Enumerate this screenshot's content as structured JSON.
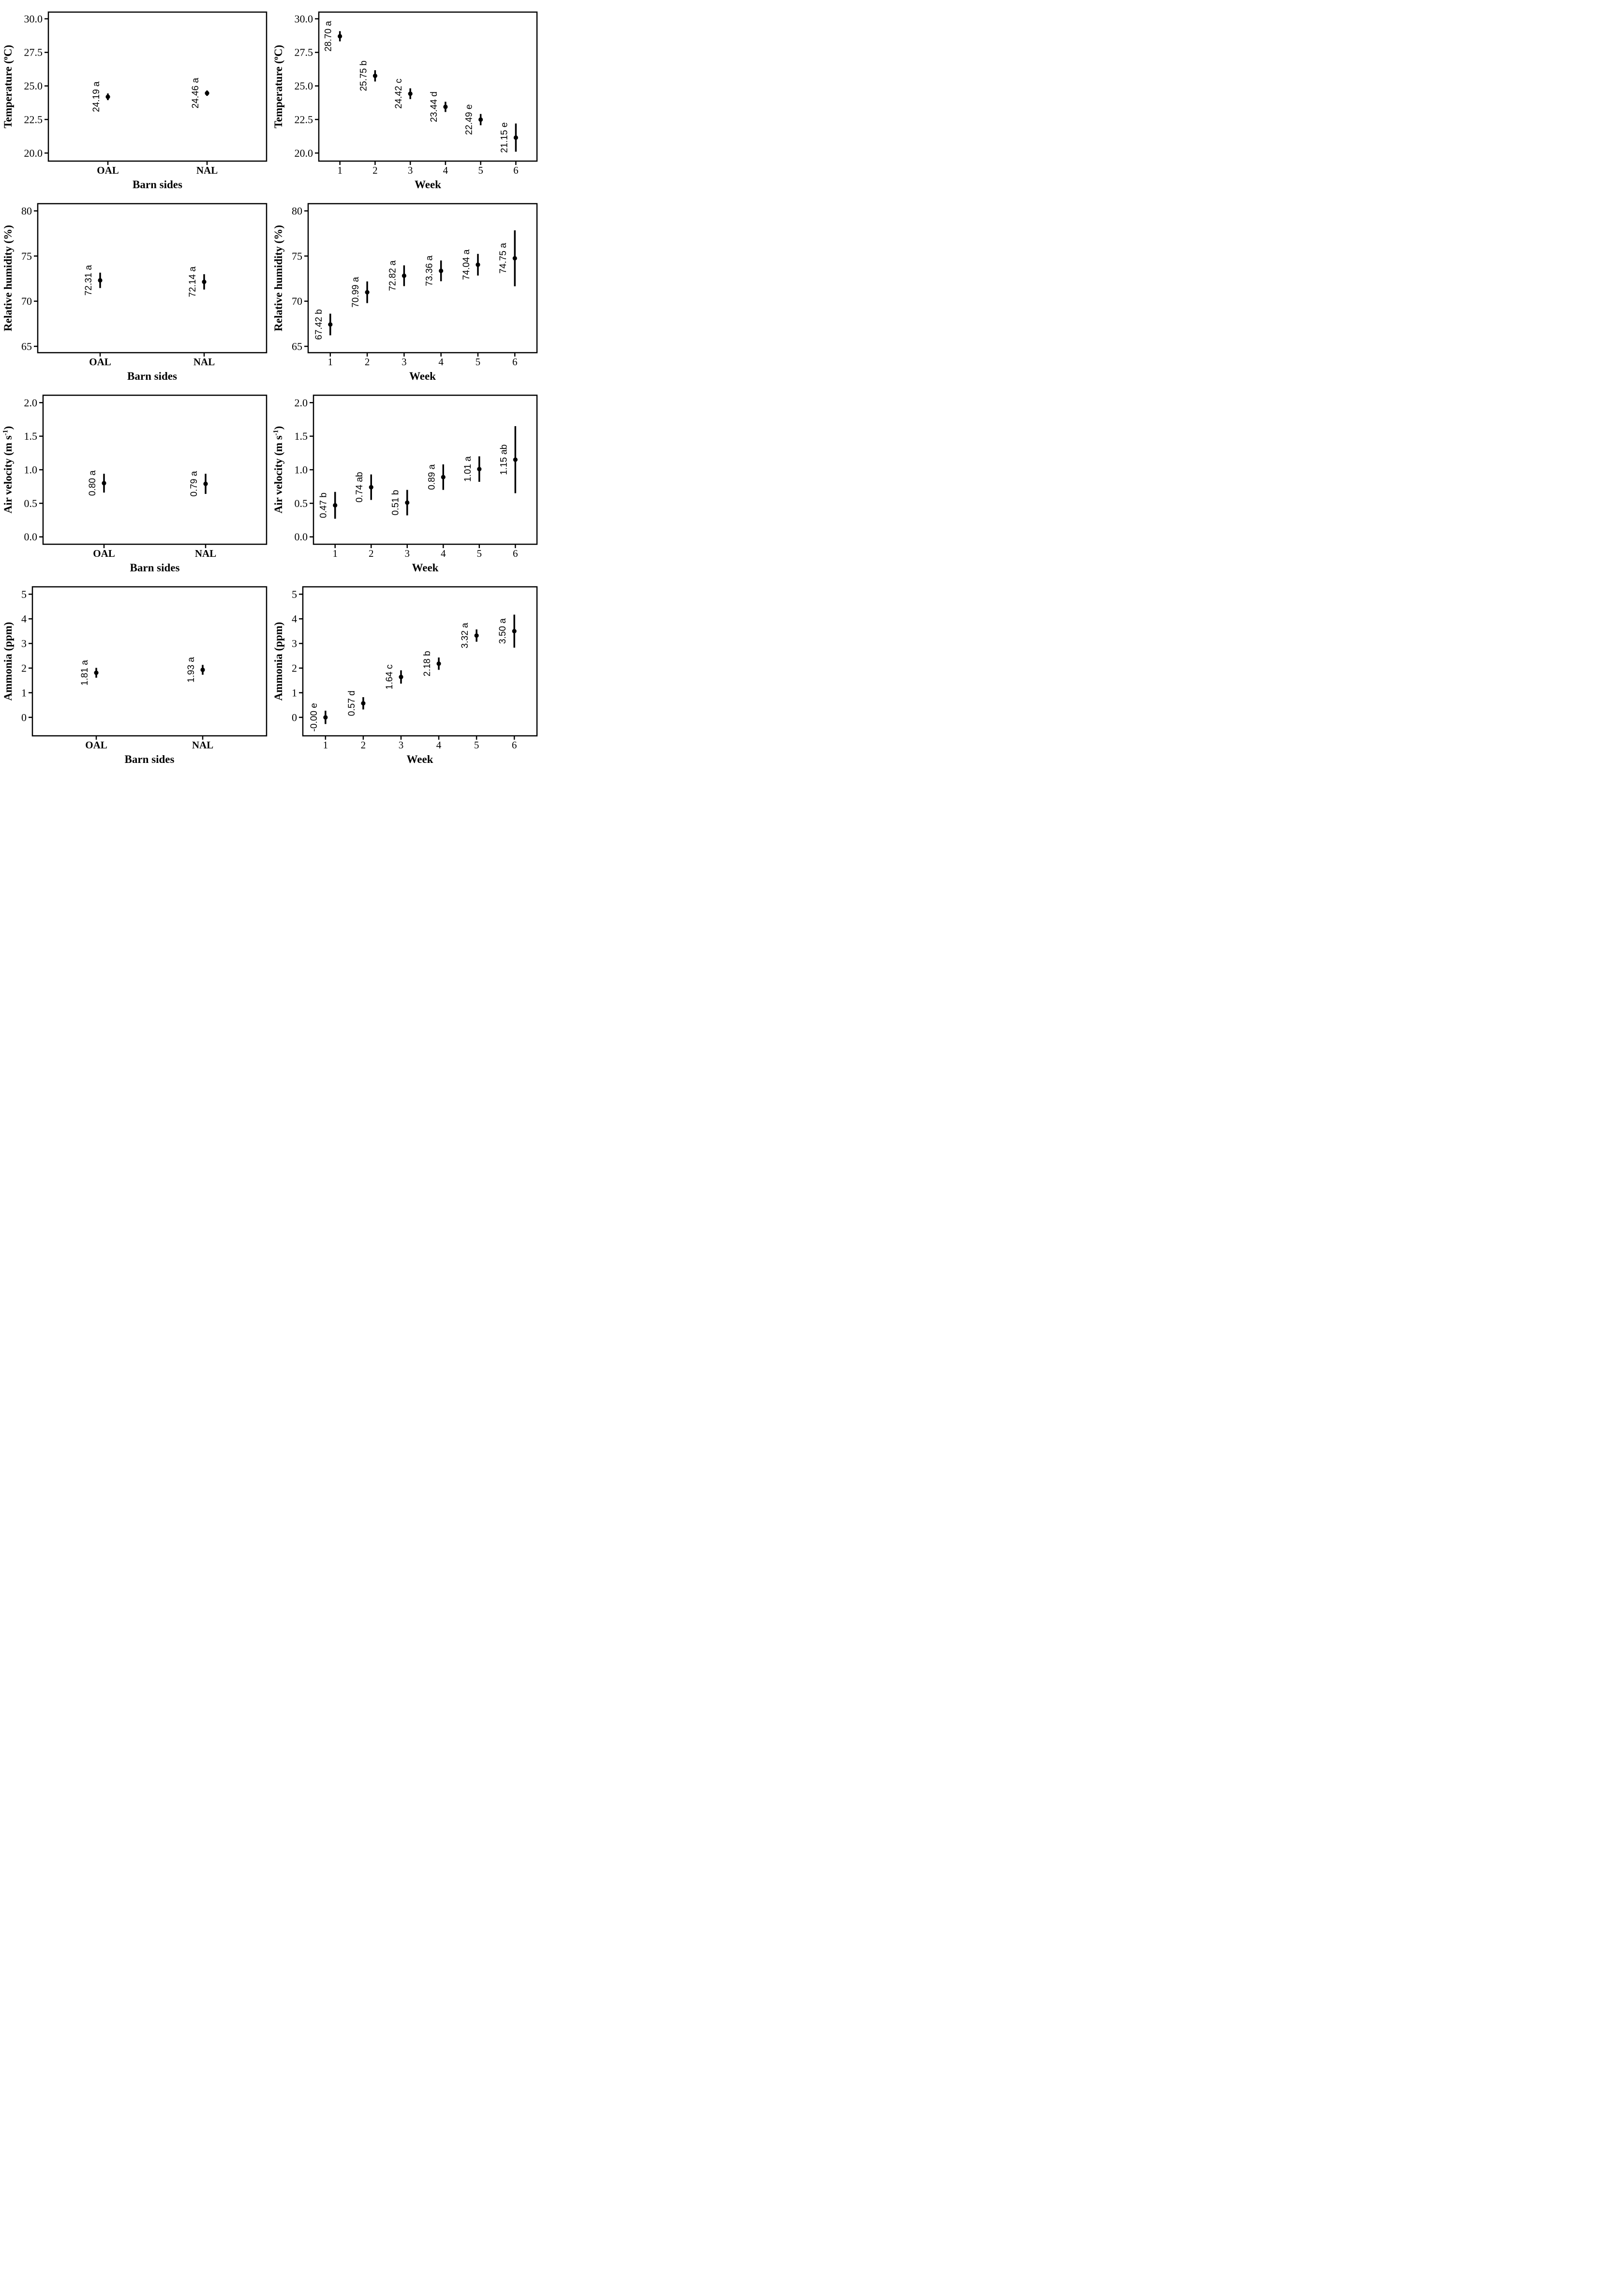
{
  "figure": {
    "background": "#ffffff",
    "ink_color": "#000000",
    "description": "Grid of eight mean-and-error-bar plots of barn environmental variables by barn side and by week"
  },
  "chart_data": [
    {
      "id": "temperature-barn",
      "type": "scatter",
      "title": "",
      "xlabel": "Barn sides",
      "ylabel": "Temperature (^o^C)",
      "grid": false,
      "legend": false,
      "x_tick_style": "bold",
      "xlim": [
        0.4,
        2.6
      ],
      "ylim": [
        19.4,
        30.5
      ],
      "x_ticks": [
        {
          "pos": 1,
          "label": "OAL"
        },
        {
          "pos": 2,
          "label": "NAL"
        }
      ],
      "y_ticks": [
        {
          "pos": 20.0,
          "label": "20.0"
        },
        {
          "pos": 22.5,
          "label": "22.5"
        },
        {
          "pos": 25.0,
          "label": "25.0"
        },
        {
          "pos": 27.5,
          "label": "27.5"
        },
        {
          "pos": 30.0,
          "label": "30.0"
        }
      ],
      "points": [
        {
          "x": 1,
          "y": 24.19,
          "err": 0.25,
          "label": "24.19 a"
        },
        {
          "x": 2,
          "y": 24.46,
          "err": 0.2,
          "label": "24.46 a"
        }
      ]
    },
    {
      "id": "temperature-week",
      "type": "scatter",
      "title": "",
      "xlabel": "Week",
      "ylabel": "Temperature (^o^C)",
      "grid": false,
      "legend": false,
      "x_tick_style": "regular",
      "xlim": [
        0.4,
        6.6
      ],
      "ylim": [
        19.4,
        30.5
      ],
      "x_ticks": [
        {
          "pos": 1,
          "label": "1"
        },
        {
          "pos": 2,
          "label": "2"
        },
        {
          "pos": 3,
          "label": "3"
        },
        {
          "pos": 4,
          "label": "4"
        },
        {
          "pos": 5,
          "label": "5"
        },
        {
          "pos": 6,
          "label": "6"
        }
      ],
      "y_ticks": [
        {
          "pos": 20.0,
          "label": "20.0"
        },
        {
          "pos": 22.5,
          "label": "22.5"
        },
        {
          "pos": 25.0,
          "label": "25.0"
        },
        {
          "pos": 27.5,
          "label": "27.5"
        },
        {
          "pos": 30.0,
          "label": "30.0"
        }
      ],
      "points": [
        {
          "x": 1,
          "y": 28.7,
          "err": 0.38,
          "label": "28.70 a"
        },
        {
          "x": 2,
          "y": 25.75,
          "err": 0.42,
          "label": "25.75 b"
        },
        {
          "x": 3,
          "y": 24.42,
          "err": 0.4,
          "label": "24.42 c"
        },
        {
          "x": 4,
          "y": 23.44,
          "err": 0.38,
          "label": "23.44 d"
        },
        {
          "x": 5,
          "y": 22.49,
          "err": 0.42,
          "label": "22.49 e"
        },
        {
          "x": 6,
          "y": 21.15,
          "err": 1.05,
          "label": "21.15 e"
        }
      ]
    },
    {
      "id": "humidity-barn",
      "type": "scatter",
      "title": "",
      "xlabel": "Barn sides",
      "ylabel": "Relative humidity (%)",
      "grid": false,
      "legend": false,
      "x_tick_style": "bold",
      "xlim": [
        0.4,
        2.6
      ],
      "ylim": [
        64.3,
        80.8
      ],
      "x_ticks": [
        {
          "pos": 1,
          "label": "OAL"
        },
        {
          "pos": 2,
          "label": "NAL"
        }
      ],
      "y_ticks": [
        {
          "pos": 65,
          "label": "65"
        },
        {
          "pos": 70,
          "label": "70"
        },
        {
          "pos": 75,
          "label": "75"
        },
        {
          "pos": 80,
          "label": "80"
        }
      ],
      "points": [
        {
          "x": 1,
          "y": 72.31,
          "err": 0.85,
          "label": "72.31 a"
        },
        {
          "x": 2,
          "y": 72.14,
          "err": 0.85,
          "label": "72.14 a"
        }
      ]
    },
    {
      "id": "humidity-week",
      "type": "scatter",
      "title": "",
      "xlabel": "Week",
      "ylabel": "Relative humidity (%)",
      "grid": false,
      "legend": false,
      "x_tick_style": "regular",
      "xlim": [
        0.4,
        6.6
      ],
      "ylim": [
        64.3,
        80.8
      ],
      "x_ticks": [
        {
          "pos": 1,
          "label": "1"
        },
        {
          "pos": 2,
          "label": "2"
        },
        {
          "pos": 3,
          "label": "3"
        },
        {
          "pos": 4,
          "label": "4"
        },
        {
          "pos": 5,
          "label": "5"
        },
        {
          "pos": 6,
          "label": "6"
        }
      ],
      "y_ticks": [
        {
          "pos": 65,
          "label": "65"
        },
        {
          "pos": 70,
          "label": "70"
        },
        {
          "pos": 75,
          "label": "75"
        },
        {
          "pos": 80,
          "label": "80"
        }
      ],
      "points": [
        {
          "x": 1,
          "y": 67.42,
          "err": 1.2,
          "label": "67.42 b"
        },
        {
          "x": 2,
          "y": 70.99,
          "err": 1.2,
          "label": "70.99 a"
        },
        {
          "x": 3,
          "y": 72.82,
          "err": 1.15,
          "label": "72.82 a"
        },
        {
          "x": 4,
          "y": 73.36,
          "err": 1.15,
          "label": "73.36 a"
        },
        {
          "x": 5,
          "y": 74.04,
          "err": 1.2,
          "label": "74.04 a"
        },
        {
          "x": 6,
          "y": 74.75,
          "err": 3.1,
          "label": "74.75 a"
        }
      ]
    },
    {
      "id": "airvelocity-barn",
      "type": "scatter",
      "title": "",
      "xlabel": "Barn sides",
      "ylabel": "Air velocity (m s^-1^)",
      "grid": false,
      "legend": false,
      "x_tick_style": "bold",
      "xlim": [
        0.4,
        2.6
      ],
      "ylim": [
        -0.11,
        2.11
      ],
      "x_ticks": [
        {
          "pos": 1,
          "label": "OAL"
        },
        {
          "pos": 2,
          "label": "NAL"
        }
      ],
      "y_ticks": [
        {
          "pos": 0.0,
          "label": "0.0"
        },
        {
          "pos": 0.5,
          "label": "0.5"
        },
        {
          "pos": 1.0,
          "label": "1.0"
        },
        {
          "pos": 1.5,
          "label": "1.5"
        },
        {
          "pos": 2.0,
          "label": "2.0"
        }
      ],
      "points": [
        {
          "x": 1,
          "y": 0.8,
          "err": 0.14,
          "label": "0.80 a"
        },
        {
          "x": 2,
          "y": 0.79,
          "err": 0.15,
          "label": "0.79 a"
        }
      ]
    },
    {
      "id": "airvelocity-week",
      "type": "scatter",
      "title": "",
      "xlabel": "Week",
      "ylabel": "Air velocity (m s^-1^)",
      "grid": false,
      "legend": false,
      "x_tick_style": "regular",
      "xlim": [
        0.4,
        6.6
      ],
      "ylim": [
        -0.11,
        2.11
      ],
      "x_ticks": [
        {
          "pos": 1,
          "label": "1"
        },
        {
          "pos": 2,
          "label": "2"
        },
        {
          "pos": 3,
          "label": "3"
        },
        {
          "pos": 4,
          "label": "4"
        },
        {
          "pos": 5,
          "label": "5"
        },
        {
          "pos": 6,
          "label": "6"
        }
      ],
      "y_ticks": [
        {
          "pos": 0.0,
          "label": "0.0"
        },
        {
          "pos": 0.5,
          "label": "0.5"
        },
        {
          "pos": 1.0,
          "label": "1.0"
        },
        {
          "pos": 1.5,
          "label": "1.5"
        },
        {
          "pos": 2.0,
          "label": "2.0"
        }
      ],
      "points": [
        {
          "x": 1,
          "y": 0.47,
          "err": 0.2,
          "label": "0.47 b"
        },
        {
          "x": 2,
          "y": 0.74,
          "err": 0.19,
          "label": "0.74 ab"
        },
        {
          "x": 3,
          "y": 0.51,
          "err": 0.19,
          "label": "0.51 b"
        },
        {
          "x": 4,
          "y": 0.89,
          "err": 0.19,
          "label": "0.89 a"
        },
        {
          "x": 5,
          "y": 1.01,
          "err": 0.19,
          "label": "1.01 a"
        },
        {
          "x": 6,
          "y": 1.15,
          "err": 0.5,
          "label": "1.15 ab"
        }
      ]
    },
    {
      "id": "ammonia-barn",
      "type": "scatter",
      "title": "",
      "xlabel": "Barn sides",
      "ylabel": "Ammonia (ppm)",
      "grid": false,
      "legend": false,
      "x_tick_style": "bold",
      "xlim": [
        0.4,
        2.6
      ],
      "ylim": [
        -0.75,
        5.3
      ],
      "x_ticks": [
        {
          "pos": 1,
          "label": "OAL"
        },
        {
          "pos": 2,
          "label": "NAL"
        }
      ],
      "y_ticks": [
        {
          "pos": 0,
          "label": "0"
        },
        {
          "pos": 1,
          "label": "1"
        },
        {
          "pos": 2,
          "label": "2"
        },
        {
          "pos": 3,
          "label": "3"
        },
        {
          "pos": 4,
          "label": "4"
        },
        {
          "pos": 5,
          "label": "5"
        }
      ],
      "points": [
        {
          "x": 1,
          "y": 1.81,
          "err": 0.2,
          "label": "1.81 a"
        },
        {
          "x": 2,
          "y": 1.93,
          "err": 0.2,
          "label": "1.93 a"
        }
      ]
    },
    {
      "id": "ammonia-week",
      "type": "scatter",
      "title": "",
      "xlabel": "Week",
      "ylabel": "Ammonia (ppm)",
      "grid": false,
      "legend": false,
      "x_tick_style": "regular",
      "xlim": [
        0.4,
        6.6
      ],
      "ylim": [
        -0.75,
        5.3
      ],
      "x_ticks": [
        {
          "pos": 1,
          "label": "1"
        },
        {
          "pos": 2,
          "label": "2"
        },
        {
          "pos": 3,
          "label": "3"
        },
        {
          "pos": 4,
          "label": "4"
        },
        {
          "pos": 5,
          "label": "5"
        },
        {
          "pos": 6,
          "label": "6"
        }
      ],
      "y_ticks": [
        {
          "pos": 0,
          "label": "0"
        },
        {
          "pos": 1,
          "label": "1"
        },
        {
          "pos": 2,
          "label": "2"
        },
        {
          "pos": 3,
          "label": "3"
        },
        {
          "pos": 4,
          "label": "4"
        },
        {
          "pos": 5,
          "label": "5"
        }
      ],
      "points": [
        {
          "x": 1,
          "y": 0.0,
          "err": 0.27,
          "label": "-0.00 e"
        },
        {
          "x": 2,
          "y": 0.57,
          "err": 0.25,
          "label": "0.57 d"
        },
        {
          "x": 3,
          "y": 1.64,
          "err": 0.27,
          "label": "1.64 c"
        },
        {
          "x": 4,
          "y": 2.18,
          "err": 0.25,
          "label": "2.18 b"
        },
        {
          "x": 5,
          "y": 3.32,
          "err": 0.25,
          "label": "3.32 a"
        },
        {
          "x": 6,
          "y": 3.5,
          "err": 0.67,
          "label": "3.50 a"
        }
      ]
    }
  ]
}
